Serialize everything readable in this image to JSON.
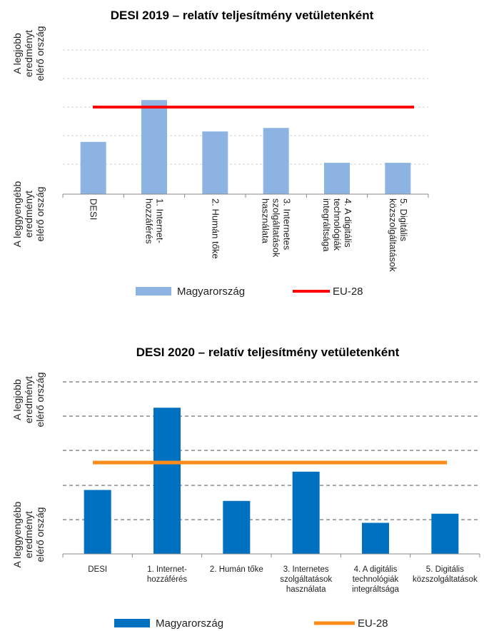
{
  "chart_data": [
    {
      "type": "bar",
      "title": "DESI 2019 – relatív teljesítmény vetületenként",
      "ylabel_top": [
        "A legjobb",
        "eredményt",
        "elérő ország"
      ],
      "ylabel_bottom": [
        "A leggyengébb",
        "eredményt",
        "elérő ország"
      ],
      "categories": [
        [
          "DESI"
        ],
        [
          "1. Internet-",
          "hozzáférés"
        ],
        [
          "2. Humán tőke"
        ],
        [
          "3. Internetes",
          "szolgáltatások",
          "használata"
        ],
        [
          "4. A digitális",
          "technológiák",
          "integráltsága"
        ],
        [
          "5. Digitális",
          "közszolgáltatások"
        ]
      ],
      "series": [
        {
          "name": "Magyarország",
          "kind": "bar",
          "color": "#8db3e2",
          "values": [
            0.3,
            0.54,
            0.36,
            0.38,
            0.18,
            0.18
          ]
        },
        {
          "name": "EU-28",
          "kind": "line",
          "color": "#ff0000",
          "value": 0.5
        }
      ],
      "ylim": [
        0,
        1
      ],
      "grid": true,
      "legend": "bottom"
    },
    {
      "type": "bar",
      "title": "DESI 2020 – relatív teljesítmény vetületenként",
      "ylabel_top": [
        "A legjobb",
        "eredményt",
        "elérő ország"
      ],
      "ylabel_bottom": [
        "A leggyengébb",
        "eredményt",
        "elérő ország"
      ],
      "categories": [
        [
          "DESI"
        ],
        [
          "1. Internet-",
          "hozzáférés"
        ],
        [
          "2. Humán tőke"
        ],
        [
          "3. Internetes",
          "szolgáltatások",
          "használata"
        ],
        [
          "4. A digitális",
          "technológiák",
          "integráltsága"
        ],
        [
          "5. Digitális",
          "közszolgáltatások"
        ]
      ],
      "series": [
        {
          "name": "Magyarország",
          "kind": "bar",
          "color": "#0070c0",
          "values": [
            0.35,
            0.8,
            0.29,
            0.45,
            0.17,
            0.22
          ]
        },
        {
          "name": "EU-28",
          "kind": "line",
          "color": "#ff8c1a",
          "value": 0.5
        }
      ],
      "ylim": [
        0,
        1
      ],
      "grid": true,
      "legend": "bottom"
    }
  ]
}
